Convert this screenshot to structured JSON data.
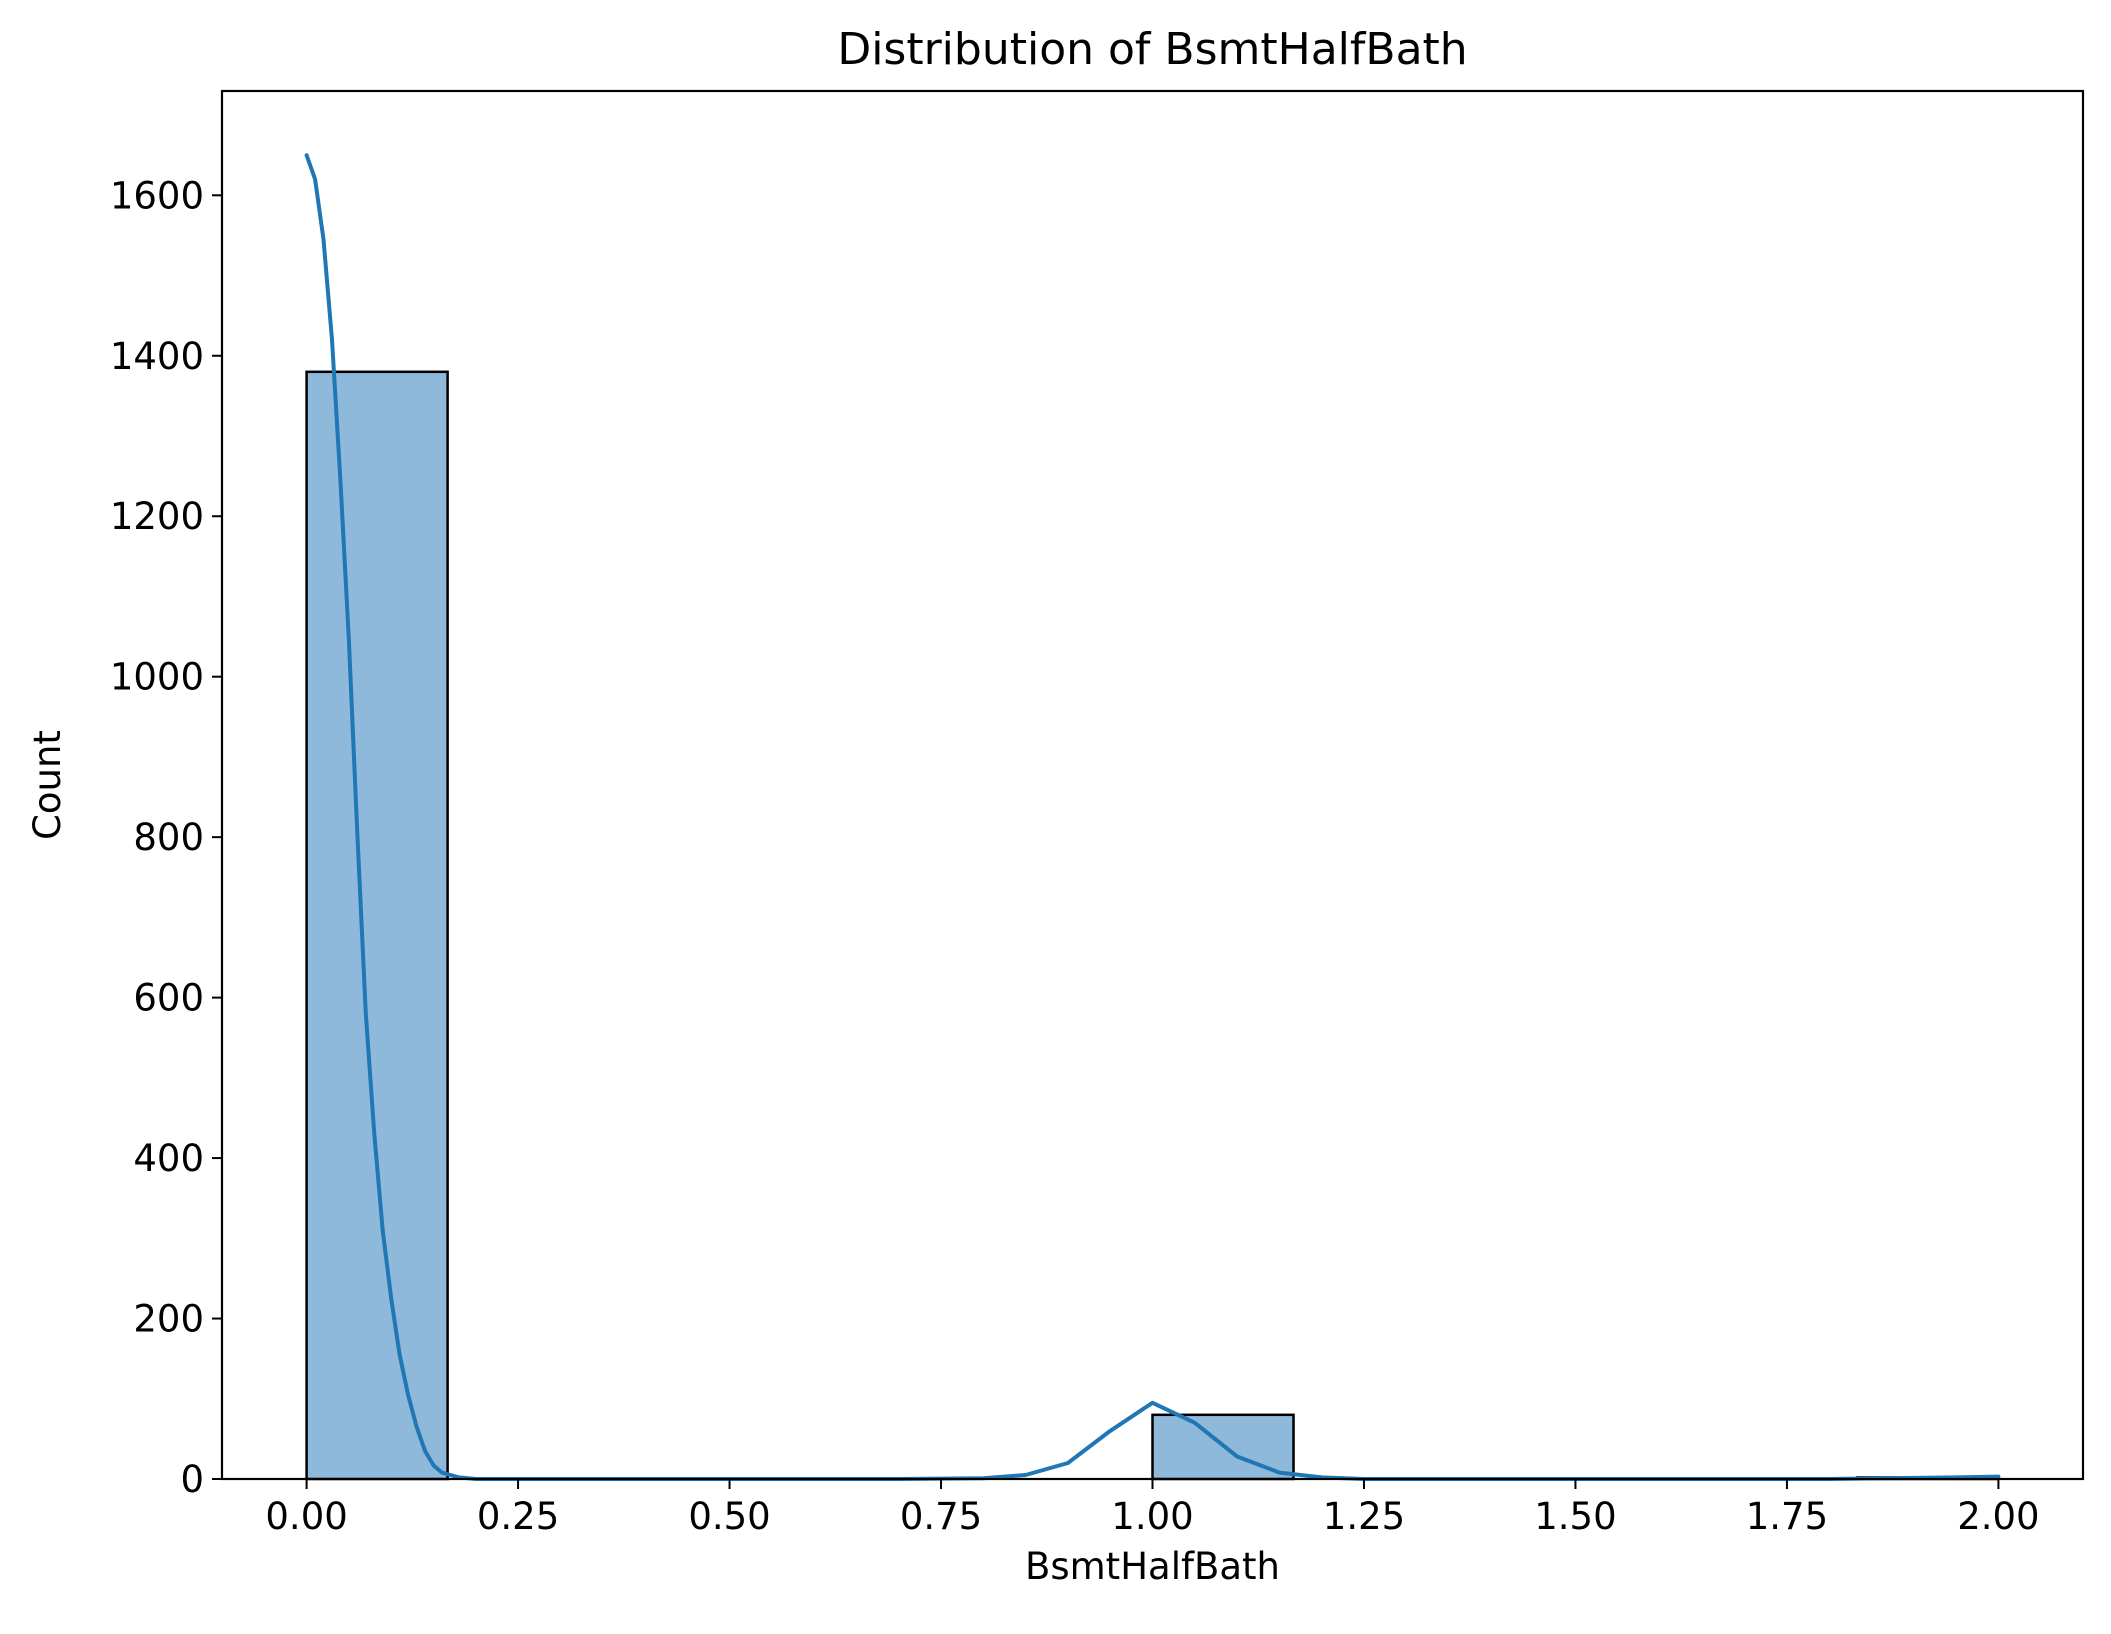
{
  "chart_data": {
    "type": "bar",
    "title": "Distribution of BsmtHalfBath",
    "xlabel": "BsmtHalfBath",
    "ylabel": "Count",
    "xlim": [
      -0.1,
      2.1
    ],
    "ylim": [
      0,
      1730
    ],
    "x_ticks": [
      0.0,
      0.25,
      0.5,
      0.75,
      1.0,
      1.25,
      1.5,
      1.75,
      2.0
    ],
    "x_tick_labels": [
      "0.00",
      "0.25",
      "0.50",
      "0.75",
      "1.00",
      "1.25",
      "1.50",
      "1.75",
      "2.00"
    ],
    "y_ticks": [
      0,
      200,
      400,
      600,
      800,
      1000,
      1200,
      1400,
      1600
    ],
    "y_tick_labels": [
      "0",
      "200",
      "400",
      "600",
      "800",
      "1000",
      "1200",
      "1400",
      "1600"
    ],
    "bins": [
      {
        "x0": 0.0,
        "x1": 0.1667,
        "count": 1380
      },
      {
        "x0": 0.1667,
        "x1": 0.3333,
        "count": 0
      },
      {
        "x0": 0.3333,
        "x1": 0.5,
        "count": 0
      },
      {
        "x0": 0.5,
        "x1": 0.6667,
        "count": 0
      },
      {
        "x0": 0.6667,
        "x1": 0.8333,
        "count": 0
      },
      {
        "x0": 0.8333,
        "x1": 1.0,
        "count": 0
      },
      {
        "x0": 1.0,
        "x1": 1.1667,
        "count": 80
      },
      {
        "x0": 1.1667,
        "x1": 1.3333,
        "count": 0
      },
      {
        "x0": 1.3333,
        "x1": 1.5,
        "count": 0
      },
      {
        "x0": 1.5,
        "x1": 1.6667,
        "count": 0
      },
      {
        "x0": 1.6667,
        "x1": 1.8333,
        "count": 0
      },
      {
        "x0": 1.8333,
        "x1": 2.0,
        "count": 2
      }
    ],
    "kde": {
      "x": [
        0.0,
        0.01,
        0.02,
        0.03,
        0.04,
        0.05,
        0.06,
        0.07,
        0.08,
        0.09,
        0.1,
        0.11,
        0.12,
        0.13,
        0.14,
        0.15,
        0.16,
        0.18,
        0.2,
        0.25,
        0.3,
        0.5,
        0.7,
        0.8,
        0.85,
        0.9,
        0.95,
        1.0,
        1.05,
        1.1,
        1.15,
        1.2,
        1.25,
        1.3,
        1.5,
        1.8,
        1.95,
        2.0
      ],
      "y": [
        1650,
        1620,
        1545,
        1420,
        1245,
        1045,
        805,
        580,
        430,
        310,
        225,
        155,
        105,
        65,
        35,
        17,
        8,
        2,
        0,
        0,
        0,
        0,
        0,
        1,
        5,
        20,
        60,
        95,
        70,
        28,
        8,
        2,
        0,
        0,
        0,
        0,
        2,
        3
      ]
    },
    "bar_color": "#8FB9DA",
    "bar_edge_color": "#000000",
    "kde_color": "#1F77B4",
    "grid": false,
    "legend": false
  }
}
